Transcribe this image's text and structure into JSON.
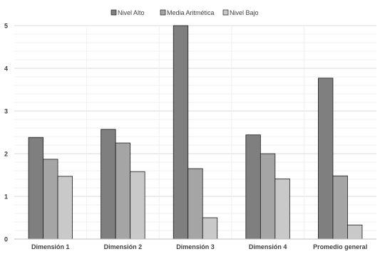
{
  "chart_data": {
    "type": "bar",
    "categories": [
      "Dimensión 1",
      "Dimensión 2",
      "Dimensión 3",
      "Dimensión 4",
      "Promedio general"
    ],
    "series": [
      {
        "name": "Nivel Alto",
        "values": [
          2.38,
          2.57,
          5.0,
          2.44,
          3.77
        ],
        "color": "#7f7f7f"
      },
      {
        "name": "Media Aritmética",
        "values": [
          1.87,
          2.25,
          1.65,
          2.0,
          1.48
        ],
        "color": "#a5a5a5"
      },
      {
        "name": "Nivel Bajo",
        "values": [
          1.47,
          1.58,
          0.5,
          1.41,
          0.33
        ],
        "color": "#c9c9c9"
      }
    ],
    "y_ticks": [
      "0",
      "1",
      "2",
      "3",
      "4",
      "5"
    ],
    "ylim": [
      0,
      5
    ],
    "grid": true,
    "legend_position": "top-center"
  }
}
